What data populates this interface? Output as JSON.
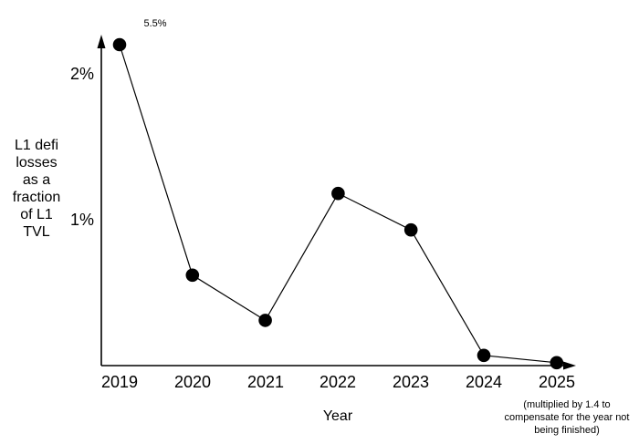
{
  "chart_data": {
    "type": "line",
    "xlabel": "Year",
    "ylabel": "L1 defi losses as a fraction of L1 TVL",
    "ylabel_lines": [
      "L1 defi",
      "losses",
      "as a",
      "fraction",
      "of L1",
      "TVL"
    ],
    "categories": [
      "2019",
      "2020",
      "2021",
      "2022",
      "2023",
      "2024",
      "2025"
    ],
    "series": [
      {
        "name": "L1 defi losses as a fraction of L1 TVL",
        "values_percent": [
          5.5,
          0.62,
          0.31,
          1.18,
          0.93,
          0.07,
          0.02
        ]
      }
    ],
    "y_ticks": [
      {
        "value": 2,
        "label": "2%"
      },
      {
        "value": 1,
        "label": "1%"
      }
    ],
    "ylim": [
      0,
      2.27
    ],
    "clip_max_percent": 2.2,
    "grid": false,
    "legend": false,
    "annotations": {
      "peak_label": "5.5%",
      "peak_label_target": "2019",
      "footnote_lines": [
        "(multiplied by 1.4 to",
        "compensate for the year not",
        "being finished)"
      ],
      "footnote_target": "2025"
    },
    "colors": {
      "marker": "#000000",
      "line": "#000000",
      "axis": "#000000",
      "text": "#000000",
      "background": "#ffffff"
    }
  }
}
